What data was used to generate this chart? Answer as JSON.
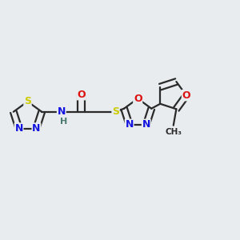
{
  "bg_color": "#e8ecee",
  "bond_color": "#2a2a2a",
  "bond_width": 1.6,
  "label_colors": {
    "N": "#1414e0",
    "O": "#dd1111",
    "S": "#cccc00",
    "H": "#4a7a70",
    "C": "#2a2a2a"
  },
  "font_size": 9.0
}
